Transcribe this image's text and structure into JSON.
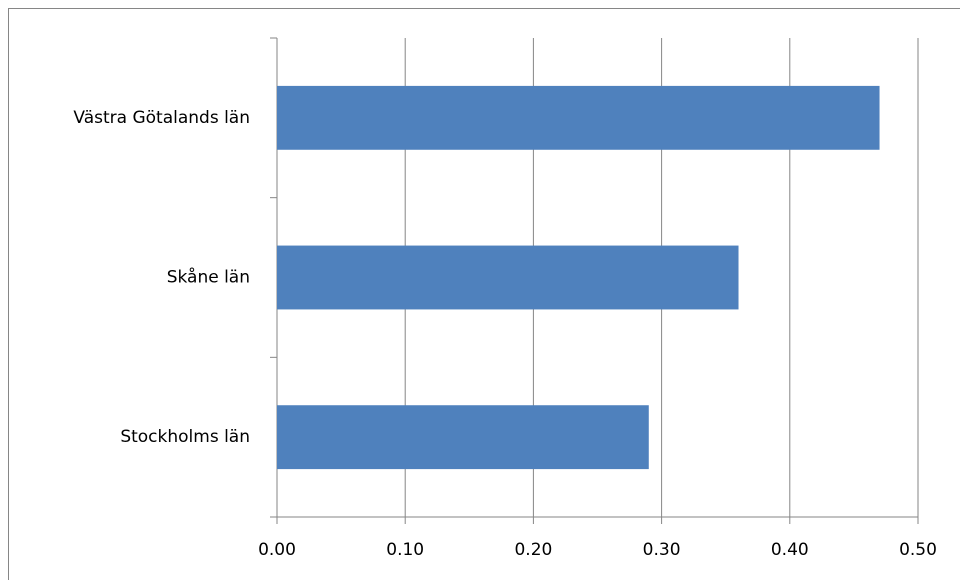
{
  "chart_data": {
    "type": "hbar",
    "categories": [
      "Västra Götalands län",
      "Skåne län",
      "Stockholms län"
    ],
    "values": [
      0.47,
      0.36,
      0.29
    ],
    "color": "#4f81bd",
    "xlim": [
      0,
      0.5
    ],
    "xticks": [
      {
        "value": 0,
        "label": "0.00"
      },
      {
        "value": 0.1,
        "label": "0.10"
      },
      {
        "value": 0.2,
        "label": "0.20"
      },
      {
        "value": 0.3,
        "label": "0.30"
      },
      {
        "value": 0.4,
        "label": "0.40"
      },
      {
        "value": 0.5,
        "label": "0.50"
      }
    ],
    "grid": true
  }
}
